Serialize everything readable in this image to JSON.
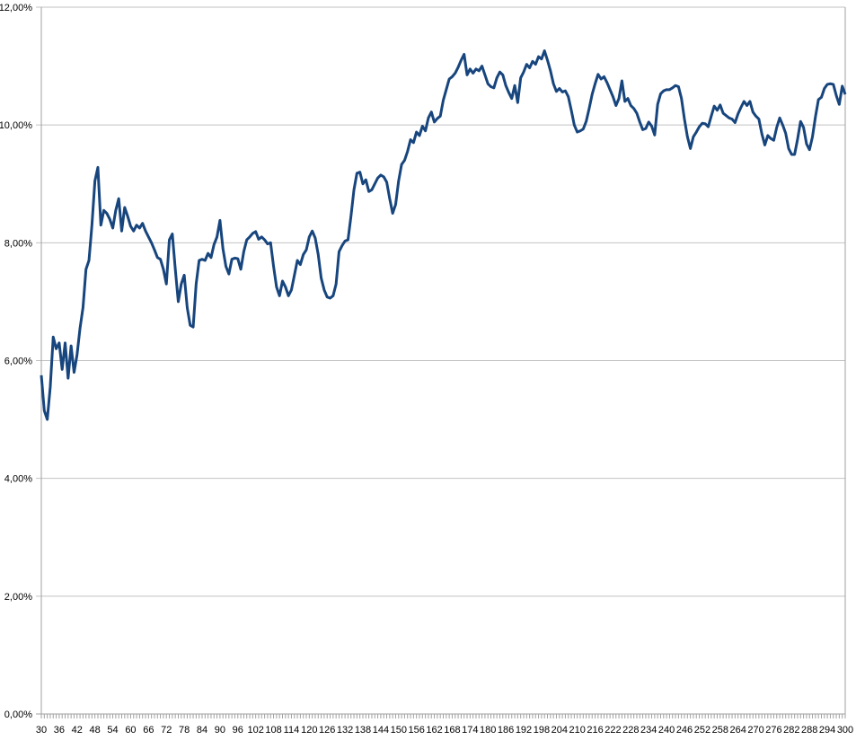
{
  "chart_data": {
    "type": "line",
    "title": "",
    "xlabel": "",
    "ylabel": "",
    "legend": "none",
    "grid": "horizontal",
    "xlim": [
      30,
      300
    ],
    "ylim": [
      0,
      12
    ],
    "x_start": 30,
    "x_step": 1,
    "x_tick_step": 6,
    "x_tick_labels": [
      "30",
      "36",
      "42",
      "48",
      "54",
      "60",
      "66",
      "72",
      "78",
      "84",
      "90",
      "96",
      "102",
      "108",
      "114",
      "120",
      "126",
      "132",
      "138",
      "144",
      "150",
      "156",
      "162",
      "168",
      "174",
      "180",
      "186",
      "192",
      "198",
      "204",
      "210",
      "216",
      "222",
      "228",
      "234",
      "240",
      "246",
      "252",
      "258",
      "264",
      "270",
      "276",
      "282",
      "288",
      "294",
      "300"
    ],
    "y_tick_labels": [
      "0,00%",
      "2,00%",
      "4,00%",
      "6,00%",
      "8,00%",
      "10,00%",
      "12,00%"
    ],
    "y_tick_values": [
      0,
      2,
      4,
      6,
      8,
      10,
      12
    ],
    "series_name": "",
    "values_unit": "percent",
    "values": [
      5.75,
      5.15,
      5.0,
      5.55,
      6.4,
      6.2,
      6.3,
      5.85,
      6.3,
      5.7,
      6.25,
      5.8,
      6.1,
      6.55,
      6.9,
      7.55,
      7.7,
      8.3,
      9.05,
      9.28,
      8.3,
      8.55,
      8.5,
      8.4,
      8.25,
      8.55,
      8.75,
      8.2,
      8.6,
      8.45,
      8.28,
      8.2,
      8.3,
      8.25,
      8.33,
      8.2,
      8.1,
      8.0,
      7.88,
      7.75,
      7.72,
      7.55,
      7.3,
      8.05,
      8.15,
      7.55,
      7.0,
      7.3,
      7.45,
      6.9,
      6.6,
      6.57,
      7.3,
      7.7,
      7.72,
      7.7,
      7.82,
      7.75,
      7.97,
      8.1,
      8.38,
      7.9,
      7.6,
      7.47,
      7.72,
      7.74,
      7.73,
      7.55,
      7.85,
      8.05,
      8.1,
      8.16,
      8.19,
      8.06,
      8.1,
      8.05,
      7.98,
      8.0,
      7.6,
      7.25,
      7.1,
      7.35,
      7.25,
      7.1,
      7.2,
      7.45,
      7.7,
      7.63,
      7.8,
      7.88,
      8.1,
      8.2,
      8.08,
      7.8,
      7.4,
      7.2,
      7.08,
      7.06,
      7.1,
      7.3,
      7.85,
      7.95,
      8.03,
      8.05,
      8.45,
      8.9,
      9.18,
      9.2,
      9.0,
      9.07,
      8.87,
      8.9,
      9.0,
      9.1,
      9.15,
      9.12,
      9.03,
      8.75,
      8.5,
      8.65,
      9.05,
      9.33,
      9.4,
      9.55,
      9.75,
      9.7,
      9.88,
      9.82,
      9.98,
      9.9,
      10.12,
      10.22,
      10.05,
      10.11,
      10.15,
      10.42,
      10.6,
      10.78,
      10.82,
      10.88,
      10.98,
      11.1,
      11.2,
      10.85,
      10.95,
      10.88,
      10.95,
      10.92,
      11.0,
      10.85,
      10.7,
      10.65,
      10.63,
      10.8,
      10.9,
      10.85,
      10.67,
      10.55,
      10.45,
      10.67,
      10.38,
      10.8,
      10.9,
      11.03,
      10.97,
      11.08,
      11.03,
      11.16,
      11.12,
      11.26,
      11.1,
      10.92,
      10.7,
      10.57,
      10.62,
      10.56,
      10.58,
      10.48,
      10.25,
      10.0,
      9.88,
      9.9,
      9.93,
      10.06,
      10.28,
      10.52,
      10.7,
      10.86,
      10.78,
      10.82,
      10.72,
      10.6,
      10.48,
      10.33,
      10.45,
      10.75,
      10.4,
      10.45,
      10.33,
      10.28,
      10.2,
      10.05,
      9.92,
      9.94,
      10.05,
      9.98,
      9.83,
      10.35,
      10.53,
      10.58,
      10.6,
      10.6,
      10.63,
      10.67,
      10.65,
      10.45,
      10.1,
      9.8,
      9.6,
      9.8,
      9.88,
      9.97,
      10.03,
      10.02,
      9.97,
      10.15,
      10.32,
      10.25,
      10.34,
      10.2,
      10.16,
      10.12,
      10.1,
      10.04,
      10.19,
      10.3,
      10.4,
      10.33,
      10.4,
      10.22,
      10.15,
      10.1,
      9.85,
      9.66,
      9.82,
      9.77,
      9.74,
      9.96,
      10.12,
      10.0,
      9.86,
      9.6,
      9.5,
      9.5,
      9.76,
      10.06,
      9.96,
      9.68,
      9.58,
      9.8,
      10.14,
      10.43,
      10.47,
      10.62,
      10.69,
      10.7,
      10.69,
      10.5,
      10.35,
      10.66,
      10.52
    ],
    "colors": {
      "line": "#17457D",
      "gridline": "#C2C2C2",
      "axis": "#A0A0A0",
      "text": "#000000",
      "background": "#FFFFFF"
    }
  }
}
